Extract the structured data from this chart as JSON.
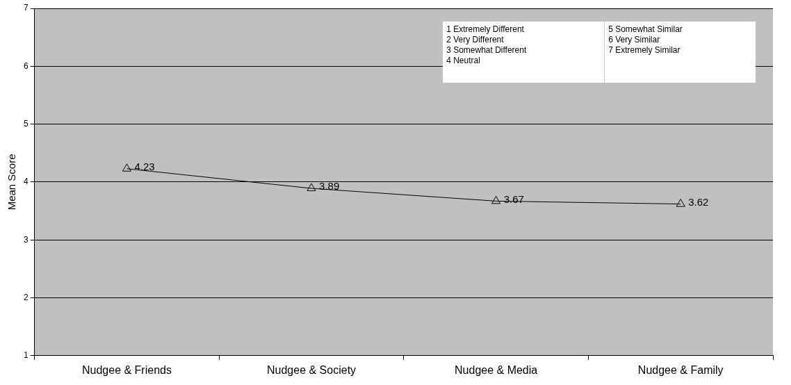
{
  "chart_data": {
    "type": "line",
    "ylabel": "Mean Score",
    "categories": [
      "Nudgee & Friends",
      "Nudgee & Society",
      "Nudgee & Media",
      "Nudgee & Family"
    ],
    "series": [
      {
        "color": "#000000",
        "values": [
          4.23,
          3.89,
          3.67,
          3.62
        ]
      }
    ],
    "ylim": [
      1,
      7
    ],
    "yticks": [
      1,
      2,
      3,
      4,
      5,
      6,
      7
    ],
    "grid": "y",
    "legend": false,
    "marker": "triangle",
    "line_style": "solid",
    "data_labels": true,
    "annotations": [
      "1 Extremely Different",
      "2 Very Different",
      "3 Somewhat Different",
      "4 Neutral",
      "5 Somewhat Similar",
      "6 Very Similar",
      "7 Extremely Similar"
    ]
  }
}
